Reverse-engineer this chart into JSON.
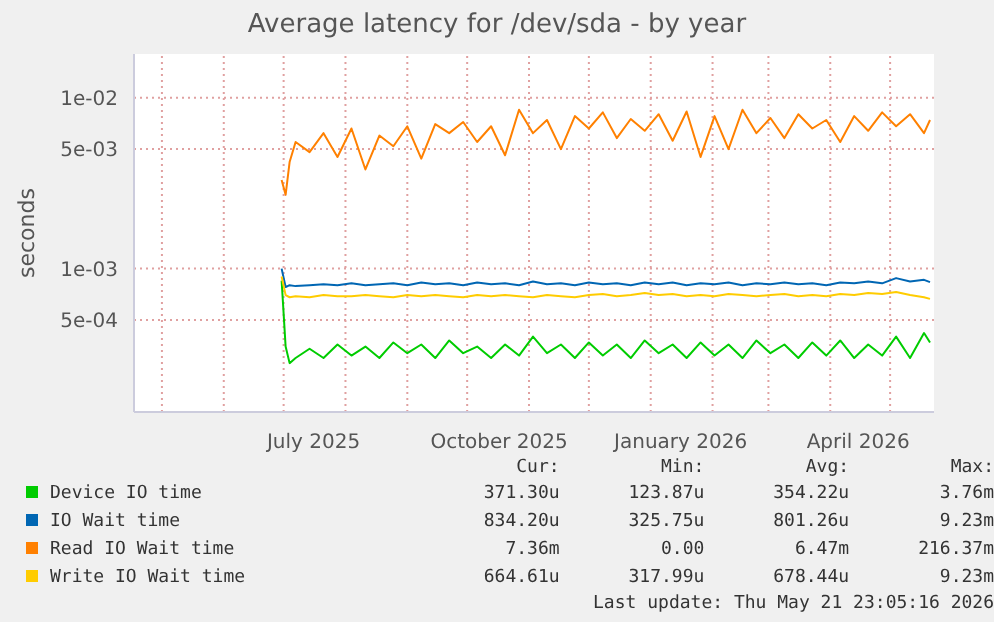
{
  "chart_data": {
    "type": "line",
    "title": "Average latency for /dev/sda - by year",
    "ylabel": "seconds",
    "log": "y",
    "grid": true,
    "legend": "bottom",
    "x": [
      "2025-06-30",
      "2025-07-02",
      "2025-07-04",
      "2025-07-07",
      "2025-07-14",
      "2025-07-21",
      "2025-07-28",
      "2025-08-04",
      "2025-08-11",
      "2025-08-18",
      "2025-08-25",
      "2025-09-01",
      "2025-09-08",
      "2025-09-15",
      "2025-09-22",
      "2025-09-29",
      "2025-10-06",
      "2025-10-13",
      "2025-10-20",
      "2025-10-27",
      "2025-11-03",
      "2025-11-10",
      "2025-11-17",
      "2025-11-24",
      "2025-12-01",
      "2025-12-08",
      "2025-12-15",
      "2025-12-22",
      "2025-12-29",
      "2026-01-05",
      "2026-01-12",
      "2026-01-19",
      "2026-01-26",
      "2026-02-02",
      "2026-02-09",
      "2026-02-16",
      "2026-02-23",
      "2026-03-02",
      "2026-03-09",
      "2026-03-16",
      "2026-03-23",
      "2026-03-30",
      "2026-04-06",
      "2026-04-13",
      "2026-04-20",
      "2026-04-27",
      "2026-05-04",
      "2026-05-11",
      "2026-05-18",
      "2026-05-21"
    ],
    "xlim": [
      "2025-04-17",
      "2026-05-23"
    ],
    "xticks": [
      {
        "value": "2025-05-01",
        "label": null
      },
      {
        "value": "2025-06-01",
        "label": null
      },
      {
        "value": "2025-07-01",
        "label": null
      },
      {
        "value": "2025-07-16",
        "label": "July 2025"
      },
      {
        "value": "2025-08-01",
        "label": null
      },
      {
        "value": "2025-09-01",
        "label": null
      },
      {
        "value": "2025-10-01",
        "label": null
      },
      {
        "value": "2025-10-17",
        "label": "October 2025"
      },
      {
        "value": "2025-11-01",
        "label": null
      },
      {
        "value": "2025-12-01",
        "label": null
      },
      {
        "value": "2026-01-01",
        "label": null
      },
      {
        "value": "2026-01-16",
        "label": "January 2026"
      },
      {
        "value": "2026-02-01",
        "label": null
      },
      {
        "value": "2026-03-01",
        "label": null
      },
      {
        "value": "2026-04-01",
        "label": null
      },
      {
        "value": "2026-04-15",
        "label": "April 2026"
      },
      {
        "value": "2026-05-01",
        "label": null
      }
    ],
    "ylim": [
      0.000145,
      0.018
    ],
    "yticks": [
      {
        "value": 0.0005,
        "label": "5e-04"
      },
      {
        "value": 0.001,
        "label": "1e-03"
      },
      {
        "value": 0.005,
        "label": "5e-03"
      },
      {
        "value": 0.01,
        "label": "1e-02"
      }
    ],
    "series": [
      {
        "name": "Device IO time",
        "color": "#00cc00",
        "values": [
          0.00085,
          0.00035,
          0.00028,
          0.0003,
          0.00034,
          0.0003,
          0.00036,
          0.00031,
          0.00035,
          0.0003,
          0.00037,
          0.00032,
          0.00036,
          0.0003,
          0.00038,
          0.00032,
          0.00035,
          0.0003,
          0.00036,
          0.00031,
          0.0004,
          0.00032,
          0.00036,
          0.0003,
          0.00037,
          0.00031,
          0.00036,
          0.0003,
          0.00038,
          0.00032,
          0.00036,
          0.0003,
          0.00037,
          0.00031,
          0.00036,
          0.0003,
          0.00038,
          0.00032,
          0.00036,
          0.0003,
          0.00037,
          0.00031,
          0.00038,
          0.0003,
          0.00036,
          0.00031,
          0.0004,
          0.0003,
          0.00042,
          0.00037
        ]
      },
      {
        "name": "IO Wait time",
        "color": "#0066b3",
        "values": [
          0.001,
          0.00078,
          0.0008,
          0.00079,
          0.0008,
          0.00081,
          0.0008,
          0.00082,
          0.0008,
          0.00081,
          0.00082,
          0.0008,
          0.00083,
          0.00081,
          0.00082,
          0.0008,
          0.00083,
          0.00081,
          0.00082,
          0.0008,
          0.00084,
          0.00081,
          0.00082,
          0.0008,
          0.00083,
          0.00081,
          0.00082,
          0.0008,
          0.00083,
          0.00081,
          0.00083,
          0.0008,
          0.00082,
          0.00081,
          0.00083,
          0.0008,
          0.00082,
          0.00081,
          0.00083,
          0.00081,
          0.00082,
          0.0008,
          0.00083,
          0.00082,
          0.00084,
          0.00082,
          0.00088,
          0.00084,
          0.00086,
          0.000834
        ]
      },
      {
        "name": "Read IO Wait time",
        "color": "#ff8000",
        "values": [
          0.0033,
          0.0027,
          0.0042,
          0.0055,
          0.0048,
          0.0062,
          0.0045,
          0.0066,
          0.0038,
          0.006,
          0.0052,
          0.0068,
          0.0044,
          0.007,
          0.0062,
          0.0072,
          0.0055,
          0.0068,
          0.0046,
          0.0085,
          0.0062,
          0.0074,
          0.005,
          0.0078,
          0.0066,
          0.0082,
          0.0058,
          0.0075,
          0.0064,
          0.008,
          0.0056,
          0.0083,
          0.0045,
          0.0078,
          0.005,
          0.0085,
          0.0062,
          0.0076,
          0.0058,
          0.008,
          0.0066,
          0.0074,
          0.0055,
          0.0078,
          0.0064,
          0.0082,
          0.0068,
          0.008,
          0.0062,
          0.0074
        ]
      },
      {
        "name": "Write IO Wait time",
        "color": "#ffcc00",
        "values": [
          0.0009,
          0.0007,
          0.00068,
          0.00069,
          0.00068,
          0.0007,
          0.00069,
          0.00069,
          0.0007,
          0.00069,
          0.00068,
          0.0007,
          0.00069,
          0.0007,
          0.00069,
          0.00068,
          0.0007,
          0.00069,
          0.0007,
          0.00069,
          0.00068,
          0.0007,
          0.00069,
          0.00068,
          0.0007,
          0.00071,
          0.00069,
          0.0007,
          0.00072,
          0.0007,
          0.00071,
          0.00069,
          0.0007,
          0.00069,
          0.00071,
          0.0007,
          0.00069,
          0.0007,
          0.00071,
          0.00069,
          0.0007,
          0.00069,
          0.00071,
          0.0007,
          0.00072,
          0.00071,
          0.00073,
          0.0007,
          0.00068,
          0.000665
        ]
      }
    ],
    "annotations": [
      "Cur:",
      "Min:",
      "Avg:",
      "Max:",
      "371.30u",
      "123.87u",
      "354.22u",
      "3.76m",
      "834.20u",
      "325.75u",
      "801.26u",
      "9.23m",
      "7.36m",
      "0.00",
      "6.47m",
      "216.37m",
      "664.61u",
      "317.99u",
      "678.44u",
      "9.23m",
      "Last update: Thu May 21 23:05:16 2026"
    ]
  }
}
